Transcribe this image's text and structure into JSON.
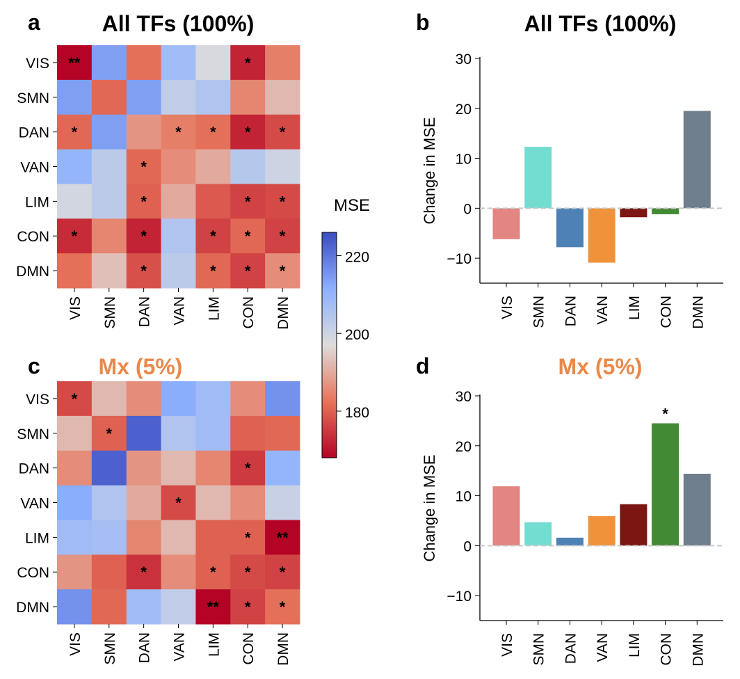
{
  "labels": {
    "panel_a": "a",
    "panel_b": "b",
    "panel_c": "c",
    "panel_d": "d"
  },
  "colors": {
    "title_all": "#000000",
    "title_mx": "#e8894a"
  },
  "colorbar": {
    "label": "MSE",
    "min": 168,
    "max": 226,
    "ticks": [
      220,
      200,
      180
    ],
    "tick_labels": [
      "220",
      "200",
      "180"
    ]
  },
  "chart_data": [
    {
      "id": "a",
      "type": "heatmap",
      "title": "All TFs (100%)",
      "x_labels": [
        "VIS",
        "SMN",
        "DAN",
        "VAN",
        "LIM",
        "CON",
        "DMN"
      ],
      "y_labels": [
        "VIS",
        "SMN",
        "DAN",
        "VAN",
        "LIM",
        "CON",
        "DMN"
      ],
      "values": [
        [
          168,
          214,
          182,
          208,
          198,
          172,
          184
        ],
        [
          214,
          181,
          214,
          202,
          205,
          185,
          192
        ],
        [
          181,
          214,
          187,
          184,
          182,
          172,
          177
        ],
        [
          210,
          203,
          181,
          186,
          190,
          204,
          200
        ],
        [
          199,
          203,
          180,
          190,
          179,
          176,
          177
        ],
        [
          173,
          185,
          172,
          205,
          176,
          181,
          176
        ],
        [
          182,
          193,
          178,
          203,
          181,
          176,
          186
        ]
      ],
      "stars": [
        [
          "**",
          "",
          "",
          "",
          "",
          "*",
          ""
        ],
        [
          "",
          "",
          "",
          "",
          "",
          "",
          ""
        ],
        [
          "*",
          "",
          "",
          "*",
          "*",
          "*",
          "*"
        ],
        [
          "",
          "",
          "*",
          "",
          "",
          "",
          ""
        ],
        [
          "",
          "",
          "*",
          "",
          "",
          "*",
          "*"
        ],
        [
          "*",
          "",
          "*",
          "",
          "*",
          "*",
          "*"
        ],
        [
          "",
          "",
          "*",
          "",
          "*",
          "*",
          "*"
        ]
      ]
    },
    {
      "id": "b",
      "type": "bar",
      "title": "All TFs (100%)",
      "categories": [
        "VIS",
        "SMN",
        "DAN",
        "VAN",
        "LIM",
        "CON",
        "DMN"
      ],
      "values": [
        -6.2,
        12.3,
        -7.8,
        -10.9,
        -1.8,
        -1.2,
        19.5
      ],
      "bar_colors": [
        "#e38683",
        "#74ddd2",
        "#4e81b5",
        "#f0923a",
        "#7b1612",
        "#438a34",
        "#6e7e8c"
      ],
      "annotations": [
        "",
        "",
        "",
        "",
        "",
        "",
        ""
      ],
      "ylabel": "Change in MSE",
      "ylim": [
        -15,
        30
      ],
      "yticks": [
        -10,
        0,
        10,
        20,
        30
      ],
      "ytick_labels": [
        "−10",
        "0",
        "10",
        "20",
        "30"
      ]
    },
    {
      "id": "c",
      "type": "heatmap",
      "title": "Mx (5%)",
      "x_labels": [
        "VIS",
        "SMN",
        "DAN",
        "VAN",
        "LIM",
        "CON",
        "DMN"
      ],
      "y_labels": [
        "VIS",
        "SMN",
        "DAN",
        "VAN",
        "LIM",
        "CON",
        "DMN"
      ],
      "values": [
        [
          177,
          192,
          186,
          212,
          208,
          186,
          216
        ],
        [
          192,
          180,
          223,
          205,
          208,
          180,
          181
        ],
        [
          186,
          223,
          187,
          192,
          185,
          175,
          210
        ],
        [
          212,
          205,
          190,
          177,
          192,
          186,
          201
        ],
        [
          208,
          207,
          185,
          192,
          180,
          180,
          168
        ],
        [
          187,
          180,
          174,
          186,
          180,
          177,
          176
        ],
        [
          216,
          181,
          208,
          202,
          168,
          176,
          182
        ]
      ],
      "stars": [
        [
          "*",
          "",
          "",
          "",
          "",
          "",
          ""
        ],
        [
          "",
          "*",
          "",
          "",
          "",
          "",
          ""
        ],
        [
          "",
          "",
          "",
          "",
          "",
          "*",
          ""
        ],
        [
          "",
          "",
          "",
          "*",
          "",
          "",
          ""
        ],
        [
          "",
          "",
          "",
          "",
          "",
          "*",
          "**"
        ],
        [
          "",
          "",
          "*",
          "",
          "*",
          "*",
          "*"
        ],
        [
          "",
          "",
          "",
          "",
          "**",
          "*",
          "*"
        ]
      ]
    },
    {
      "id": "d",
      "type": "bar",
      "title": "Mx (5%)",
      "categories": [
        "VIS",
        "SMN",
        "DAN",
        "VAN",
        "LIM",
        "CON",
        "DMN"
      ],
      "values": [
        11.9,
        4.7,
        1.6,
        5.9,
        8.3,
        24.5,
        14.4
      ],
      "bar_colors": [
        "#e38683",
        "#74ddd2",
        "#4e81b5",
        "#f0923a",
        "#7b1612",
        "#438a34",
        "#6e7e8c"
      ],
      "annotations": [
        "",
        "",
        "",
        "",
        "",
        "*",
        ""
      ],
      "ylabel": "Change in MSE",
      "ylim": [
        -15,
        30
      ],
      "yticks": [
        -10,
        0,
        10,
        20,
        30
      ],
      "ytick_labels": [
        "−10",
        "0",
        "10",
        "20",
        "30"
      ]
    }
  ]
}
